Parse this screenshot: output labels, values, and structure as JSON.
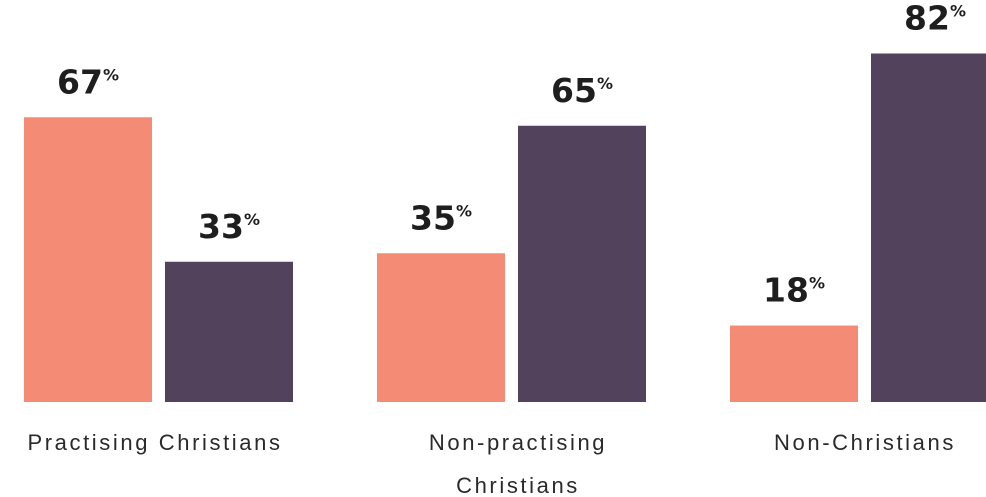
{
  "chart_data": {
    "type": "bar",
    "categories": [
      "Practising Christians",
      "Non-practising Christians",
      "Non-Christians"
    ],
    "category_label_lines": [
      [
        "Practising Christians"
      ],
      [
        "Non-practising",
        "Christians"
      ],
      [
        "Non-Christians"
      ]
    ],
    "series": [
      {
        "values": [
          67,
          35,
          18
        ],
        "color": "#f48b74"
      },
      {
        "values": [
          33,
          65,
          82
        ],
        "color": "#52425b"
      }
    ],
    "value_suffix": "%",
    "ylim": [
      0,
      100
    ],
    "title": "",
    "xlabel": "",
    "ylabel": "",
    "grid": false,
    "legend": "none"
  }
}
